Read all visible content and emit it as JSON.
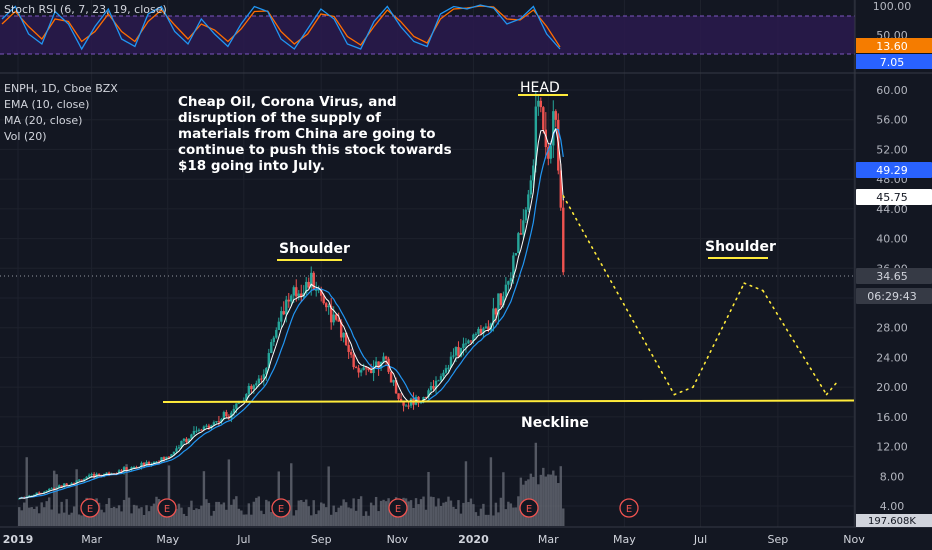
{
  "rsi_panel": {
    "label": "Stoch RSI (6, 7, 23, 19, close)",
    "ticks": [
      "100.00",
      "50.00"
    ],
    "badges": [
      {
        "text": "13.60",
        "color": "#f57c00"
      },
      {
        "text": "7.05",
        "color": "#2962ff"
      }
    ],
    "band_color": "#2a1a4d"
  },
  "price_panel": {
    "symbol_line": "ENPH, 1D, Cboe BZX",
    "indicators": [
      "EMA (10, close)",
      "MA (20, close)",
      "Vol (20)"
    ],
    "badges": [
      {
        "text": "49.29",
        "bg": "#2962ff",
        "fg": "#ffffff"
      },
      {
        "text": "45.75",
        "bg": "#ffffff",
        "fg": "#131722"
      },
      {
        "text": "34.65",
        "bg": "#363a45",
        "fg": "#d1d4dc"
      },
      {
        "text": "06:29:43",
        "bg": "#363a45",
        "fg": "#d1d4dc"
      }
    ],
    "volume_badge": "197.608K",
    "earnings_markers": [
      "E",
      "E",
      "E",
      "E",
      "E",
      "E"
    ]
  },
  "annotations": {
    "comment": [
      "Cheap Oil, Corona Virus, and",
      "disruption of the supply of",
      "materials from China are going to",
      "continue to push this stock towards",
      "$18 going into July."
    ],
    "head": "HEAD",
    "shoulder_left": "Shoulder",
    "shoulder_right": "Shoulder",
    "neckline": "Neckline"
  },
  "colors": {
    "background": "#131722",
    "grid": "#1e222d",
    "up": "#26a69a",
    "down": "#ef5350",
    "ema": "#ffffff",
    "ma": "#2196f3",
    "annotation": "#ffeb3b",
    "volume": "#6b6f7a"
  },
  "chart_data": {
    "type": "candlestick",
    "title": "ENPH, 1D, Cboe BZX",
    "x_tick_labels": [
      "2019",
      "Mar",
      "May",
      "Jul",
      "Sep",
      "Nov",
      "2020",
      "Mar",
      "May",
      "Jul",
      "Sep",
      "Nov"
    ],
    "y_tick_labels": [
      "60.00",
      "56.00",
      "52.00",
      "48.00",
      "44.00",
      "40.00",
      "36.00",
      "32.00",
      "28.00",
      "24.00",
      "20.00",
      "16.00",
      "12.00",
      "8.00",
      "4.00"
    ],
    "ylim": [
      2,
      62
    ],
    "price_path": [
      {
        "date": "2019-01-02",
        "close": 5.0
      },
      {
        "date": "2019-02-01",
        "close": 6.5
      },
      {
        "date": "2019-03-01",
        "close": 8.0
      },
      {
        "date": "2019-04-01",
        "close": 9.0
      },
      {
        "date": "2019-05-01",
        "close": 10.5
      },
      {
        "date": "2019-05-15",
        "close": 13.0
      },
      {
        "date": "2019-06-15",
        "close": 16.0
      },
      {
        "date": "2019-07-15",
        "close": 21.0
      },
      {
        "date": "2019-08-01",
        "close": 31.0
      },
      {
        "date": "2019-08-25",
        "close": 34.5
      },
      {
        "date": "2019-09-15",
        "close": 28.0
      },
      {
        "date": "2019-10-01",
        "close": 21.5
      },
      {
        "date": "2019-10-20",
        "close": 24.0
      },
      {
        "date": "2019-11-05",
        "close": 17.5
      },
      {
        "date": "2019-11-25",
        "close": 19.0
      },
      {
        "date": "2019-12-15",
        "close": 24.0
      },
      {
        "date": "2020-01-15",
        "close": 29.0
      },
      {
        "date": "2020-02-01",
        "close": 36.0
      },
      {
        "date": "2020-02-15",
        "close": 46.0
      },
      {
        "date": "2020-02-22",
        "close": 59.0
      },
      {
        "date": "2020-03-01",
        "close": 52.0
      },
      {
        "date": "2020-03-07",
        "close": 56.0
      },
      {
        "date": "2020-03-12",
        "close": 41.0
      },
      {
        "date": "2020-03-13",
        "close": 34.65
      }
    ],
    "projection": [
      {
        "date": "2020-03-13",
        "value": 45.75
      },
      {
        "date": "2020-06-10",
        "value": 19.0
      },
      {
        "date": "2020-06-25",
        "value": 20.0
      },
      {
        "date": "2020-08-05",
        "value": 34.0
      },
      {
        "date": "2020-08-20",
        "value": 33.0
      },
      {
        "date": "2020-10-10",
        "value": 19.0
      },
      {
        "date": "2020-10-20",
        "value": 21.0
      }
    ],
    "neckline": {
      "start": {
        "date": "2019-05-01",
        "value": 18.0
      },
      "end": {
        "date": "2020-11-01",
        "value": 18.2
      }
    },
    "stoch_rsi": {
      "k": [
        70,
        95,
        40,
        20,
        85,
        60,
        10,
        55,
        90,
        30,
        15,
        80,
        95,
        45,
        20,
        70,
        40,
        15,
        60,
        95,
        85,
        30,
        10,
        50,
        90,
        70,
        20,
        10,
        65,
        95,
        55,
        25,
        15,
        80,
        95,
        90,
        98,
        92,
        60,
        70,
        95,
        40,
        10
      ],
      "d": [
        60,
        85,
        55,
        30,
        70,
        65,
        25,
        45,
        80,
        45,
        25,
        65,
        88,
        58,
        30,
        60,
        48,
        25,
        50,
        85,
        86,
        45,
        20,
        40,
        80,
        75,
        35,
        18,
        55,
        88,
        65,
        35,
        22,
        70,
        90,
        92,
        96,
        94,
        70,
        68,
        88,
        55,
        14
      ]
    }
  }
}
